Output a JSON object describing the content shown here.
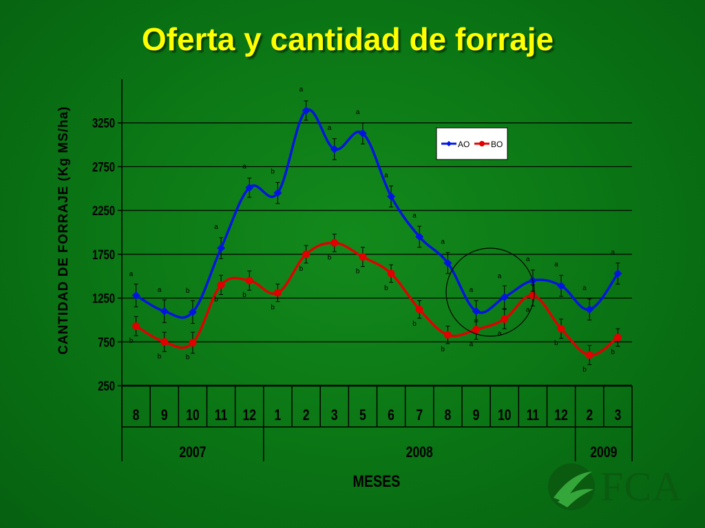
{
  "title": "Oferta y cantidad de forraje",
  "logo_text": "FCA",
  "colors": {
    "background": "#0a7414",
    "series_AO": "#0014e0",
    "series_BO": "#e00000",
    "title": "#ffff00"
  },
  "chart_data": {
    "type": "line",
    "ylabel": "CANTIDAD DE FORRAJE (Kg MS/ha)",
    "xlabel": "MESES",
    "ylim": [
      250,
      3750
    ],
    "yticks": [
      250,
      750,
      1250,
      1750,
      2250,
      2750,
      3250
    ],
    "grid": true,
    "legend": "top-right",
    "categories": [
      "8",
      "9",
      "10",
      "11",
      "12",
      "1",
      "2",
      "3",
      "5",
      "6",
      "7",
      "8",
      "9",
      "10",
      "11",
      "12",
      "2",
      "3"
    ],
    "year_groups": [
      {
        "label": "2007",
        "count": 5
      },
      {
        "label": "2008",
        "count": 11
      },
      {
        "label": "2009",
        "count": 2
      }
    ],
    "series": [
      {
        "name": "AO",
        "values": [
          1280,
          1100,
          1090,
          1820,
          2510,
          2450,
          3390,
          2950,
          3130,
          2410,
          1950,
          1650,
          1100,
          1260,
          1450,
          1390,
          1120,
          1530
        ],
        "errors": [
          130,
          130,
          130,
          120,
          110,
          120,
          110,
          120,
          120,
          120,
          120,
          120,
          120,
          130,
          120,
          120,
          120,
          120
        ],
        "letters": [
          "a",
          "a",
          "b",
          "a",
          "a",
          "b",
          "a",
          "a",
          "a",
          "a",
          "a",
          "a",
          "a",
          "a",
          "a",
          "a",
          "a",
          "a"
        ]
      },
      {
        "name": "BO",
        "values": [
          930,
          750,
          740,
          1400,
          1450,
          1310,
          1750,
          1880,
          1720,
          1530,
          1120,
          830,
          890,
          1010,
          1280,
          900,
          600,
          800
        ],
        "errors": [
          110,
          110,
          120,
          110,
          110,
          100,
          100,
          100,
          110,
          100,
          100,
          100,
          110,
          110,
          120,
          110,
          110,
          100
        ],
        "letters": [
          "b",
          "b",
          "b",
          "b",
          "b",
          "b",
          "b",
          "b",
          "b",
          "b",
          "b",
          "b",
          "a",
          "a",
          "a",
          "b",
          "b",
          "b"
        ]
      }
    ]
  }
}
